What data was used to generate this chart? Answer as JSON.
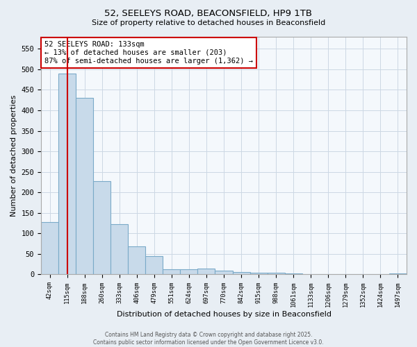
{
  "title1": "52, SEELEYS ROAD, BEACONSFIELD, HP9 1TB",
  "title2": "Size of property relative to detached houses in Beaconsfield",
  "xlabel": "Distribution of detached houses by size in Beaconsfield",
  "ylabel": "Number of detached properties",
  "bar_color": "#c8daea",
  "bar_edge_color": "#7aaac8",
  "categories": [
    "42sqm",
    "115sqm",
    "188sqm",
    "260sqm",
    "333sqm",
    "406sqm",
    "479sqm",
    "551sqm",
    "624sqm",
    "697sqm",
    "770sqm",
    "842sqm",
    "915sqm",
    "988sqm",
    "1061sqm",
    "1133sqm",
    "1206sqm",
    "1279sqm",
    "1352sqm",
    "1424sqm",
    "1497sqm"
  ],
  "values": [
    127,
    490,
    430,
    228,
    122,
    68,
    45,
    12,
    12,
    15,
    10,
    6,
    4,
    4,
    3,
    1,
    1,
    1,
    1,
    0,
    2
  ],
  "ylim": [
    0,
    580
  ],
  "yticks": [
    0,
    50,
    100,
    150,
    200,
    250,
    300,
    350,
    400,
    450,
    500,
    550
  ],
  "vline_x_idx": 1,
  "vline_color": "#cc0000",
  "annotation_text": "52 SEELEYS ROAD: 133sqm\n← 13% of detached houses are smaller (203)\n87% of semi-detached houses are larger (1,362) →",
  "annotation_box_color": "#ffffff",
  "annotation_box_edge": "#cc0000",
  "footer1": "Contains HM Land Registry data © Crown copyright and database right 2025.",
  "footer2": "Contains public sector information licensed under the Open Government Licence v3.0.",
  "bg_color": "#e8eef4",
  "plot_bg_color": "#f4f8fc",
  "grid_color": "#ccd8e4"
}
